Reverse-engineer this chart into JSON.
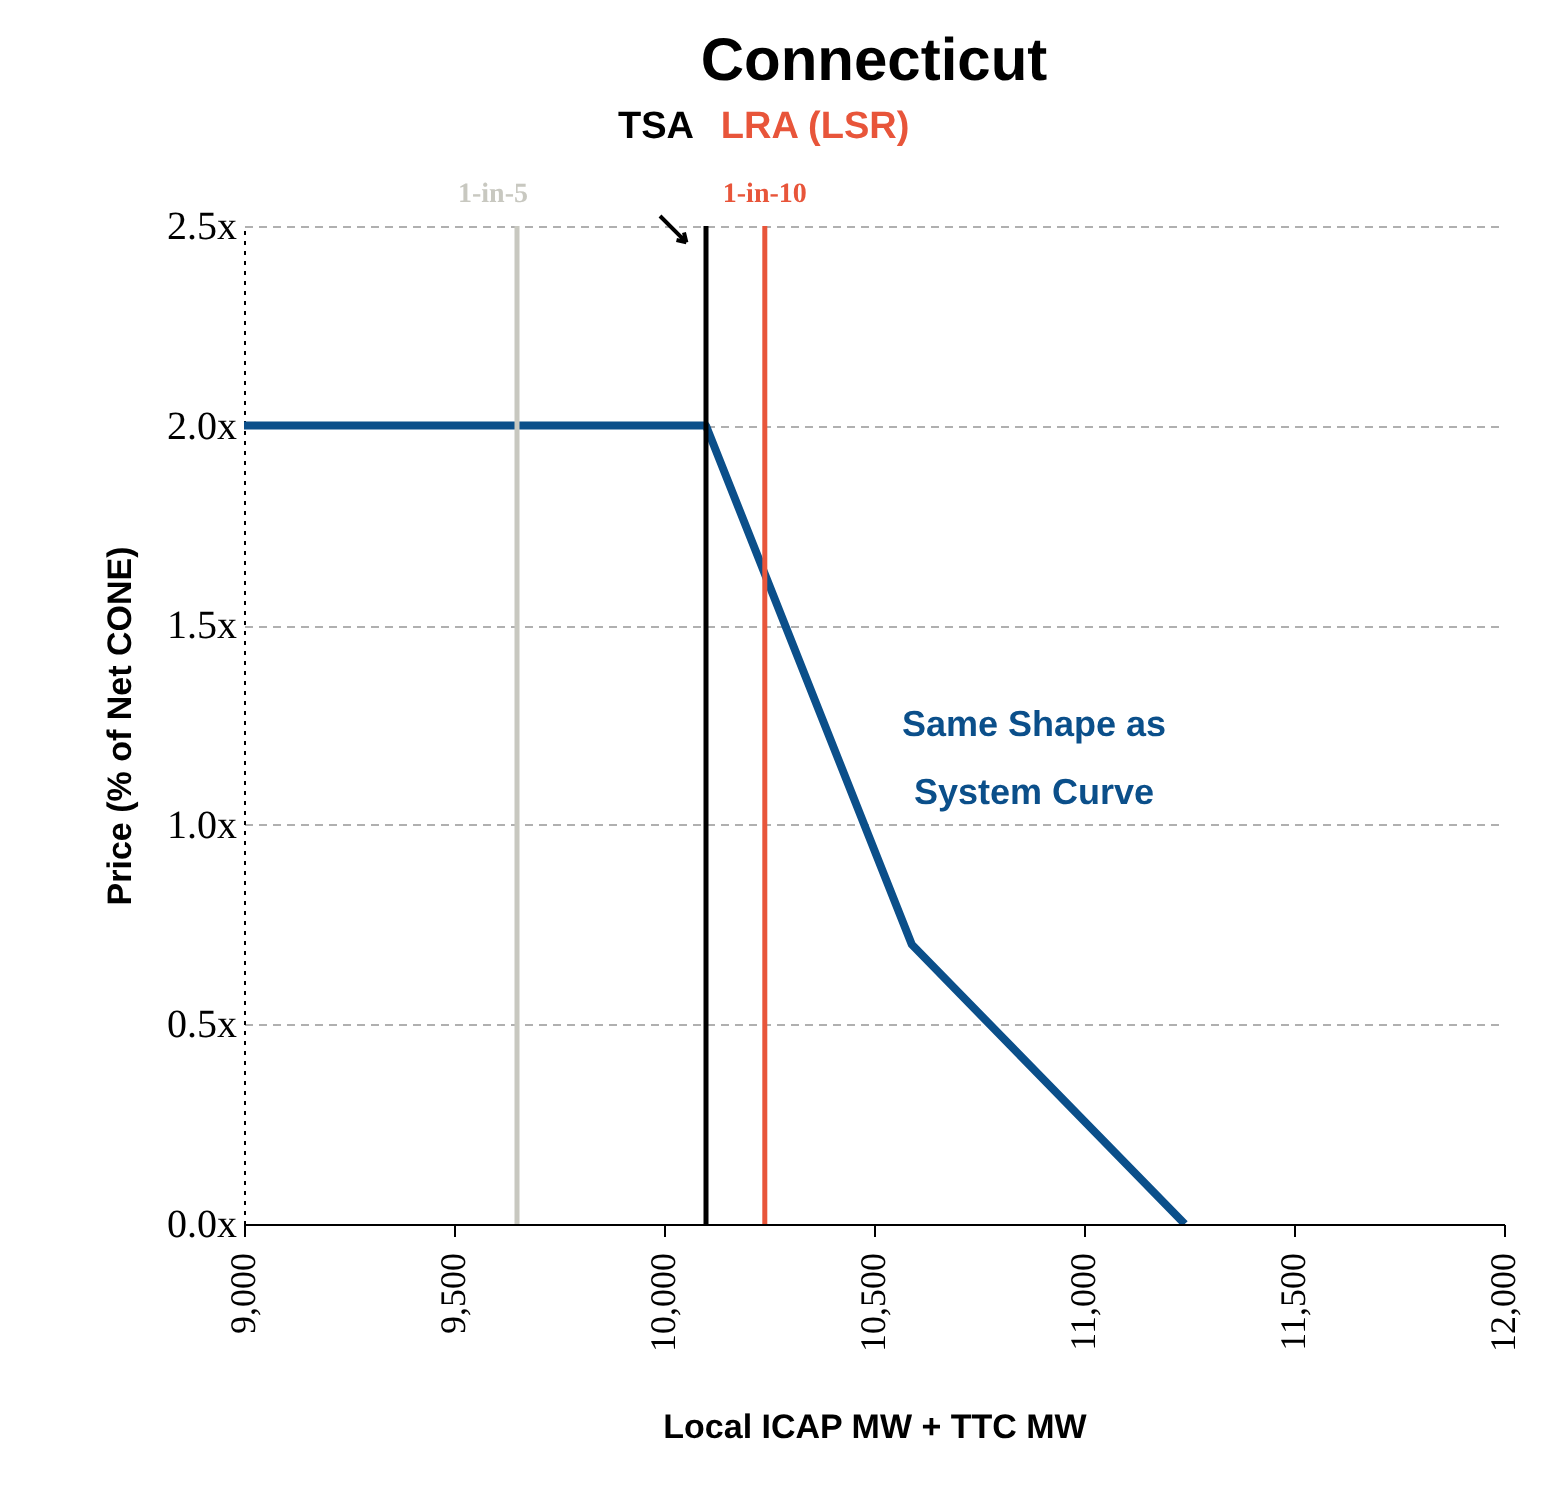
{
  "chart_data": {
    "type": "line",
    "title": "Connecticut",
    "xlabel": "Local ICAP MW + TTC MW",
    "ylabel": "Price (% of Net CONE)",
    "series": [
      {
        "color": "#0b4f8a",
        "x": [
          9000,
          10100,
          10590,
          11240
        ],
        "values": [
          2.0,
          2.0,
          0.7,
          0.0
        ]
      }
    ],
    "xlim": [
      9000,
      12000
    ],
    "xticks": [
      {
        "value": 9000,
        "label": "9,000"
      },
      {
        "value": 9500,
        "label": "9,500"
      },
      {
        "value": 10000,
        "label": "10,000"
      },
      {
        "value": 10500,
        "label": "10,500"
      },
      {
        "value": 11000,
        "label": "11,000"
      },
      {
        "value": 11500,
        "label": "11,500"
      },
      {
        "value": 12000,
        "label": "12,000"
      }
    ],
    "ylim": [
      0,
      2.5
    ],
    "yticks": [
      {
        "value": 0,
        "label": "0.0x"
      },
      {
        "value": 0.5,
        "label": "0.5x"
      },
      {
        "value": 1,
        "label": "1.0x"
      },
      {
        "value": 1.5,
        "label": "1.5x"
      },
      {
        "value": 2,
        "label": "2.0x"
      },
      {
        "value": 2.5,
        "label": "2.5x"
      }
    ],
    "grid": "y",
    "marker": "none",
    "line_style": "solid",
    "ref_lines": [
      {
        "axis": "x",
        "value": 9650,
        "label": "1-in-5",
        "color": "#c8c8c0"
      },
      {
        "axis": "x",
        "value": 10100,
        "label": "TSA",
        "color": "#000000"
      },
      {
        "axis": "x",
        "value": 10240,
        "label": "LRA (LSR)",
        "color": "#e8553a"
      }
    ],
    "annotations": [
      "1-in-10",
      "Same Shape as System Curve"
    ]
  }
}
